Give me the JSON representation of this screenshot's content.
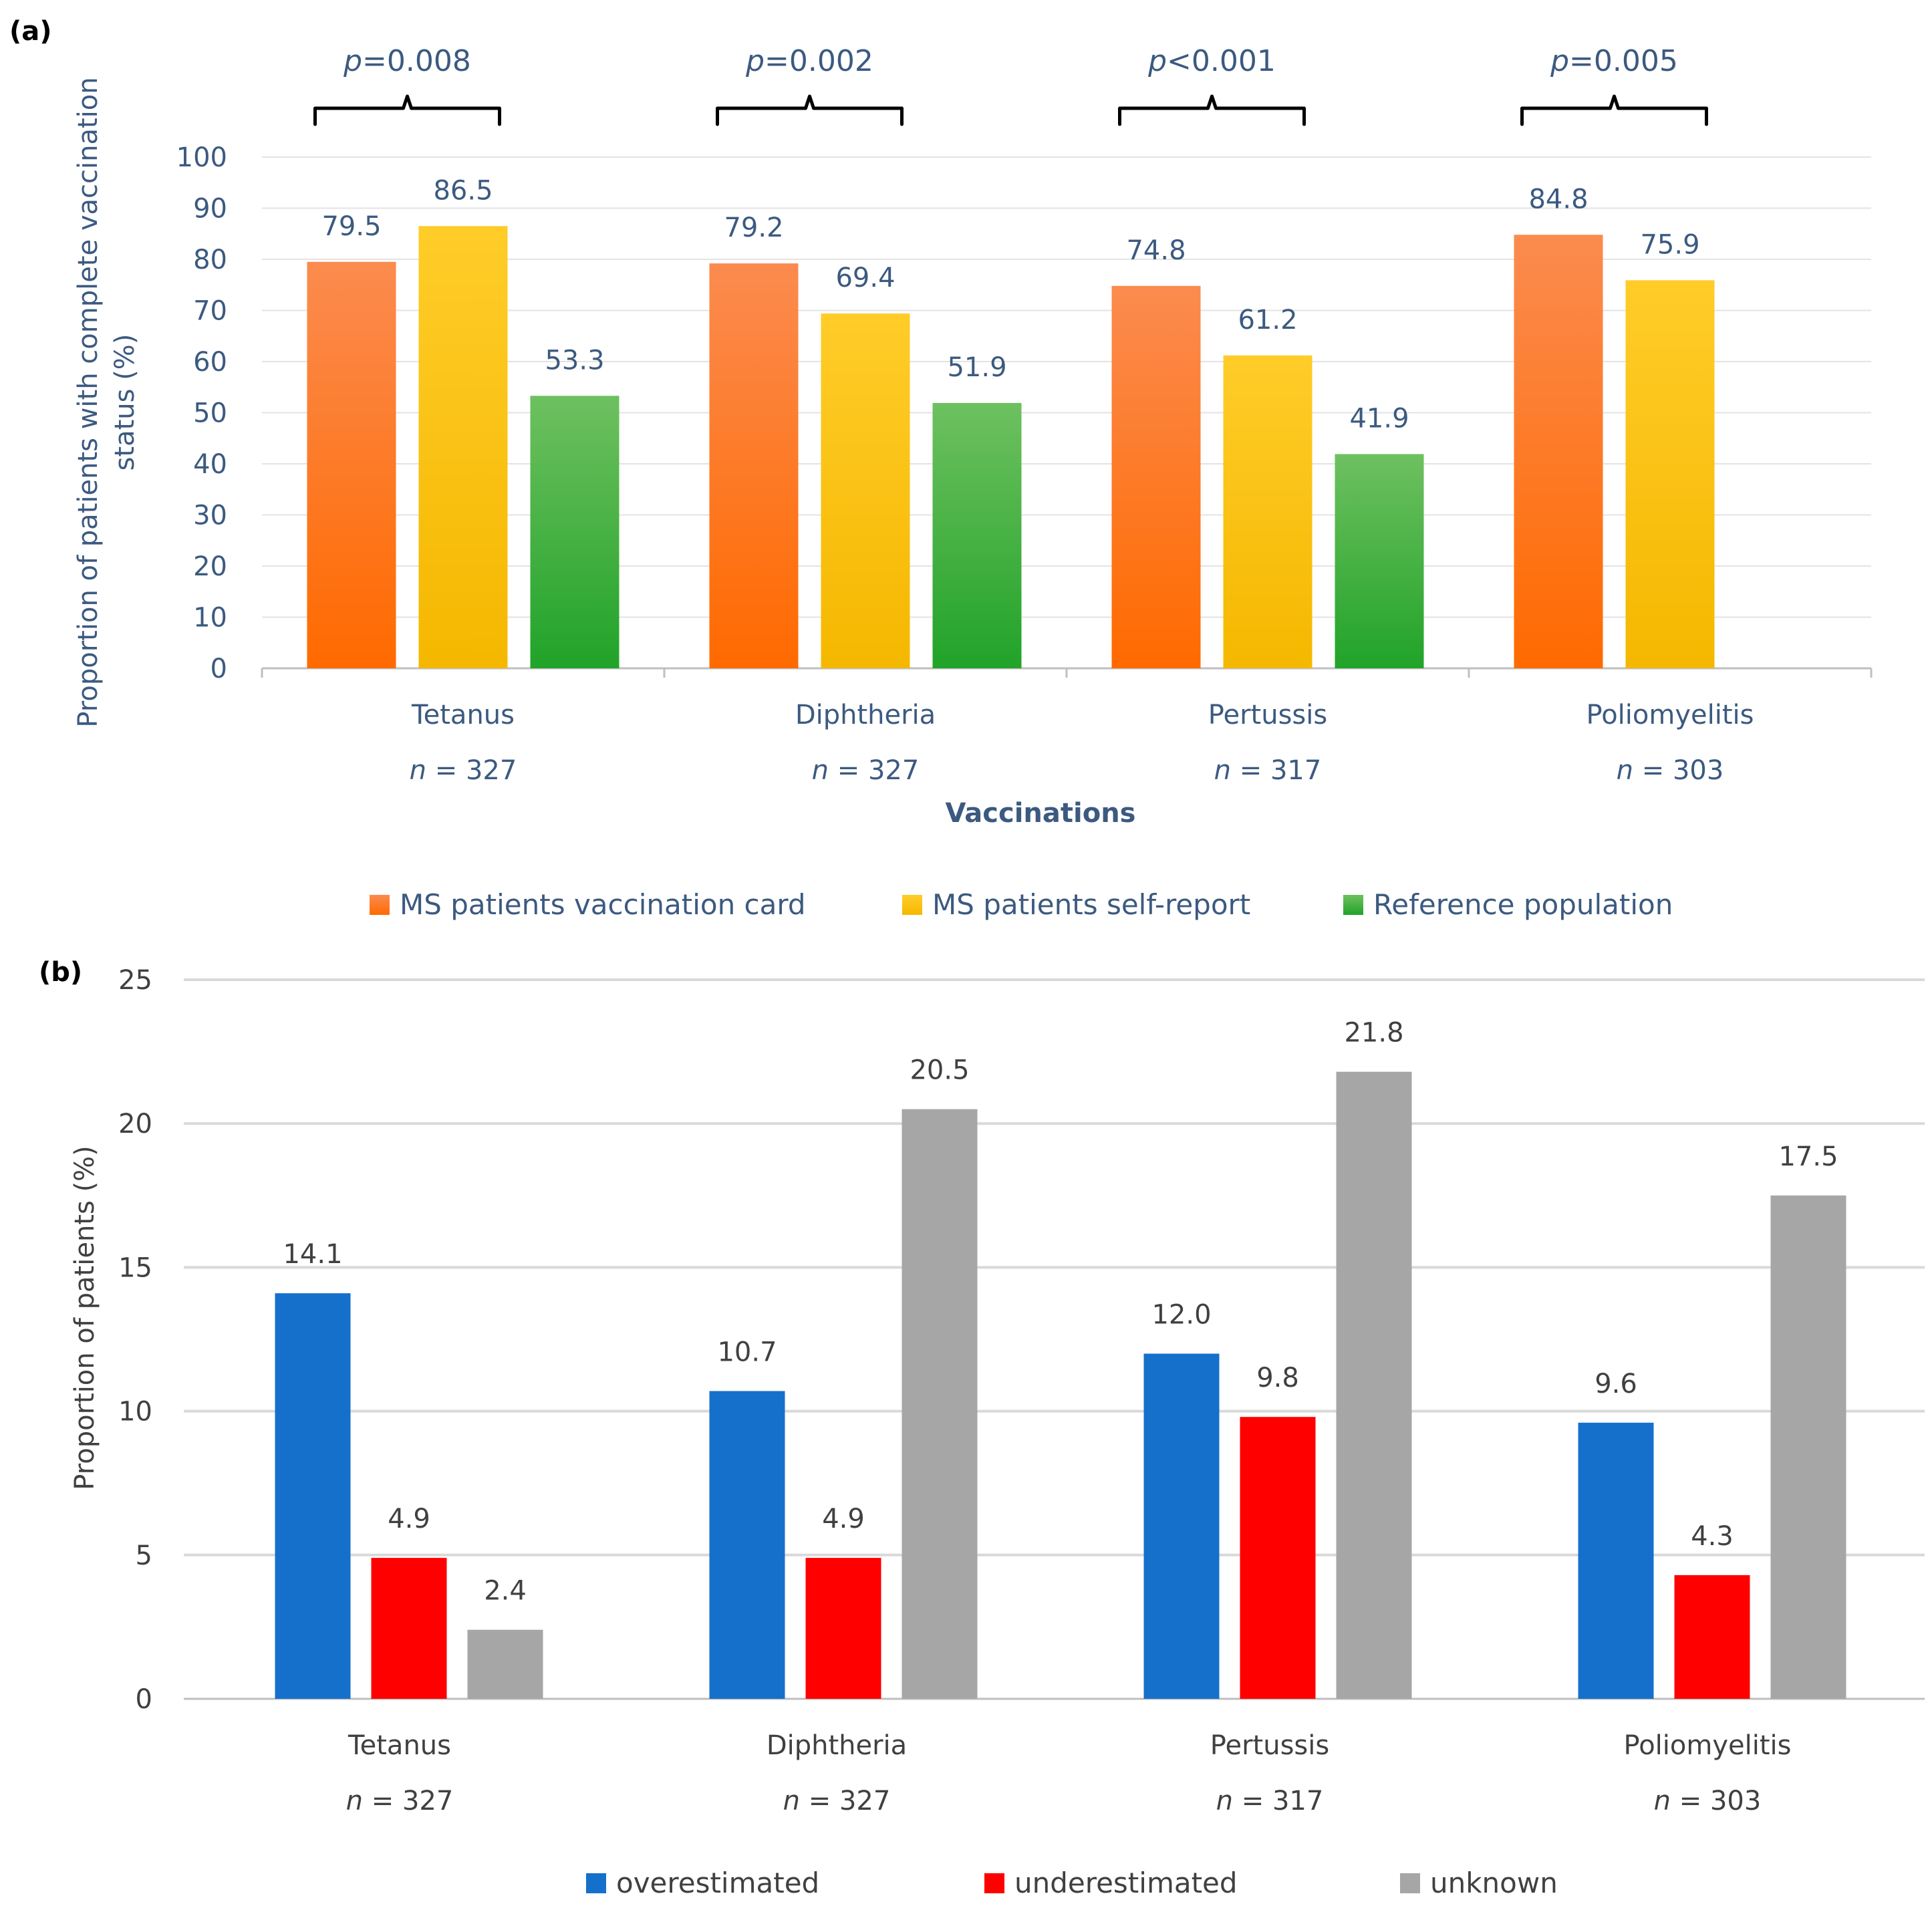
{
  "chart_data": [
    {
      "panel": "(a)",
      "type": "bar",
      "categories": [
        "Tetanus",
        "Diphtheria",
        "Pertussis",
        "Poliomyelitis"
      ],
      "n_labels": [
        "327",
        "327",
        "317",
        "303"
      ],
      "n_prefix": "n",
      "n_sep": " = ",
      "series": [
        {
          "name": "MS patients vaccination card",
          "values": [
            79.5,
            79.2,
            74.8,
            84.8
          ],
          "labels": [
            "79.5",
            "79.2",
            "74.8",
            "84.8"
          ],
          "color_top": "#fb8b4f",
          "color_bottom": "#ff6a00"
        },
        {
          "name": "MS patients self-report",
          "values": [
            86.5,
            69.4,
            61.2,
            75.9
          ],
          "labels": [
            "86.5",
            "69.4",
            "61.2",
            "75.9"
          ],
          "color_top": "#ffcc29",
          "color_bottom": "#f5b800"
        },
        {
          "name": "Reference population",
          "values": [
            53.3,
            51.9,
            41.9,
            null
          ],
          "labels": [
            "53.3",
            "51.9",
            "41.9",
            ""
          ],
          "color_top": "#6ec060",
          "color_bottom": "#21a329"
        }
      ],
      "p_values": [
        {
          "var": "p",
          "rest": "=0.008"
        },
        {
          "var": "p",
          "rest": "=0.002"
        },
        {
          "var": "p",
          "rest": "<0.001"
        },
        {
          "var": "p",
          "rest": "=0.005"
        }
      ],
      "xlabel": "Vaccinations",
      "ylabel_line1": "Proportion of patients with complete vaccination",
      "ylabel_line2": "status  (%)",
      "ylim": [
        0,
        100
      ],
      "yticks": [
        0,
        10,
        20,
        30,
        40,
        50,
        60,
        70,
        80,
        90,
        100
      ],
      "grid": true,
      "legend_position": "bottom"
    },
    {
      "panel": "(b)",
      "type": "bar",
      "categories": [
        "Tetanus",
        "Diphtheria",
        "Pertussis",
        "Poliomyelitis"
      ],
      "n_labels": [
        "327",
        "327",
        "317",
        "303"
      ],
      "n_prefix": "n",
      "n_sep": " = ",
      "series": [
        {
          "name": "overestimated",
          "values": [
            14.1,
            10.7,
            12.0,
            9.6
          ],
          "labels": [
            "14.1",
            "10.7",
            "12.0",
            "9.6"
          ],
          "color": "#1570cc"
        },
        {
          "name": "underestimated",
          "values": [
            4.9,
            4.9,
            9.8,
            4.3
          ],
          "labels": [
            "4.9",
            "4.9",
            "9.8",
            "4.3"
          ],
          "color": "#ff0000"
        },
        {
          "name": "unknown",
          "values": [
            2.4,
            20.5,
            21.8,
            17.5
          ],
          "labels": [
            "2.4",
            "20.5",
            "21.8",
            "17.5"
          ],
          "color": "#a6a6a6"
        }
      ],
      "xlabel": "",
      "ylabel": "Proportion of patients (%)",
      "ylim": [
        0,
        25
      ],
      "yticks": [
        0,
        5,
        10,
        15,
        20,
        25
      ],
      "grid": true,
      "legend_position": "bottom"
    }
  ]
}
